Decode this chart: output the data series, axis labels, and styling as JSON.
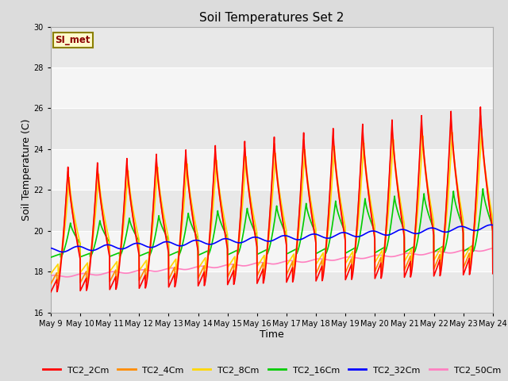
{
  "title": "Soil Temperatures Set 2",
  "xlabel": "Time",
  "ylabel": "Soil Temperature (C)",
  "ylim": [
    16,
    30
  ],
  "xlim": [
    0,
    360
  ],
  "xtick_labels": [
    "May 9",
    "May 10",
    "May 11",
    "May 12",
    "May 13",
    "May 14",
    "May 15",
    "May 16",
    "May 17",
    "May 18",
    "May 19",
    "May 20",
    "May 21",
    "May 22",
    "May 23",
    "May 24"
  ],
  "series_colors": {
    "TC2_2Cm": "#FF0000",
    "TC2_4Cm": "#FF8C00",
    "TC2_8Cm": "#FFD700",
    "TC2_16Cm": "#00CC00",
    "TC2_32Cm": "#0000FF",
    "TC2_50Cm": "#FF80C0"
  },
  "annotation_text": "SI_met",
  "annotation_color": "#8B0000",
  "annotation_bg": "#FFFACD",
  "annotation_border": "#8B8000",
  "background_color": "#DCDCDC",
  "plot_bg_light": "#F0F0F0",
  "plot_bg_dark": "#E0E0E0",
  "grid_color": "#FFFFFF",
  "title_fontsize": 11,
  "axis_label_fontsize": 9,
  "tick_fontsize": 7,
  "legend_fontsize": 8,
  "line_width": 1.2
}
